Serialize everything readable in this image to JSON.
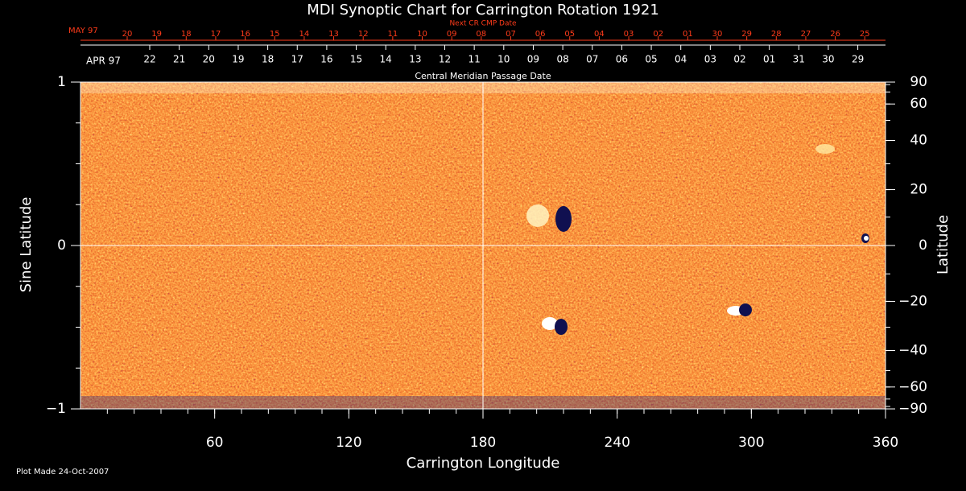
{
  "chart_data": {
    "type": "synoptic",
    "title": "MDI Synoptic Chart for Carrington Rotation 1921",
    "xlabel": "Carrington Longitude",
    "ylabel": "Sine Latitude",
    "y2label": "Latitude",
    "top_axis_label": "Next CR CMP Date",
    "cmp_axis_label": "Central Meridian Passage Date",
    "footer": "Plot Made 24-Oct-2007",
    "next_cr_month": "MAY 97",
    "next_cr_dates": [
      "20",
      "19",
      "18",
      "17",
      "16",
      "15",
      "14",
      "13",
      "12",
      "11",
      "10",
      "09",
      "08",
      "07",
      "06",
      "05",
      "04",
      "03",
      "02",
      "01",
      "30",
      "29",
      "28",
      "27",
      "26",
      "25"
    ],
    "cmp_month": "APR 97",
    "cmp_dates": [
      "22",
      "21",
      "20",
      "19",
      "18",
      "17",
      "16",
      "15",
      "14",
      "13",
      "12",
      "11",
      "10",
      "09",
      "08",
      "07",
      "06",
      "05",
      "04",
      "03",
      "02",
      "01",
      "31",
      "30",
      "29"
    ],
    "xlim": [
      0,
      360
    ],
    "xticks": [
      60,
      120,
      180,
      240,
      300,
      360
    ],
    "ylim": [
      -1,
      1
    ],
    "yticks": [
      {
        "value": -1,
        "label": "−1"
      },
      0,
      1
    ],
    "y2lim": [
      -90,
      90
    ],
    "y2scale": "sine",
    "y2ticks": [
      90,
      60,
      40,
      20,
      0,
      {
        "value": -20,
        "label": "−20"
      },
      {
        "value": -40,
        "label": "−40"
      },
      {
        "value": -60,
        "label": "−60"
      },
      {
        "value": -90,
        "label": "−90"
      }
    ]
  }
}
